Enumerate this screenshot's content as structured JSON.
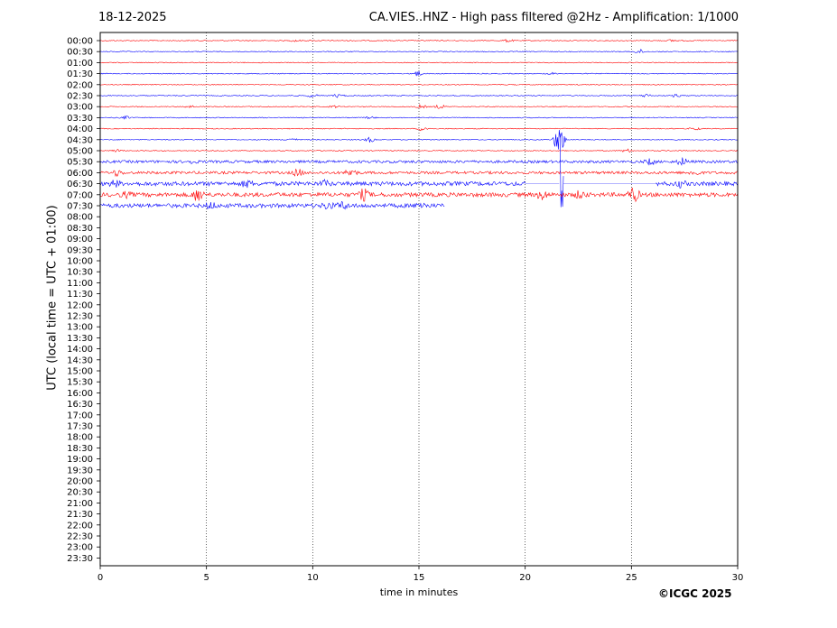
{
  "header": {
    "date": "18-12-2025",
    "title": "CA.VIES..HNZ - High pass filtered @2Hz - Amplification: 1/1000"
  },
  "copyright": "©ICGC 2025",
  "colors": {
    "odd": "#0000ff",
    "even": "#ff0000",
    "grid": "#000000"
  },
  "chart_data": {
    "type": "line",
    "title": "CA.VIES..HNZ - High pass filtered @2Hz - Amplification: 1/1000",
    "xlabel": "time in minutes",
    "ylabel": "UTC (local time = UTC + 01:00)",
    "xlim": [
      0,
      30
    ],
    "xticks": [
      0,
      5,
      10,
      15,
      20,
      25,
      30
    ],
    "grid_x": true,
    "rows": [
      "00:00",
      "00:30",
      "01:00",
      "01:30",
      "02:00",
      "02:30",
      "03:00",
      "03:30",
      "04:00",
      "04:30",
      "05:00",
      "05:30",
      "06:00",
      "06:30",
      "07:00",
      "07:30",
      "08:00",
      "08:30",
      "09:00",
      "09:30",
      "10:00",
      "10:30",
      "11:00",
      "11:30",
      "12:00",
      "12:30",
      "13:00",
      "13:30",
      "14:00",
      "14:30",
      "15:00",
      "15:30",
      "16:00",
      "16:30",
      "17:00",
      "17:30",
      "18:00",
      "18:30",
      "19:00",
      "19:30",
      "20:00",
      "20:30",
      "21:00",
      "21:30",
      "22:00",
      "22:30",
      "23:00",
      "23:30"
    ],
    "recorded_rows": 16,
    "last_row_end_minute": 16.2,
    "gaps": [
      {
        "row": 13,
        "from": 20,
        "to": 21.6
      },
      {
        "row": 13,
        "from": 21.8,
        "to": 26.1
      }
    ],
    "events": [
      {
        "row": 0,
        "minute": 9.2,
        "amp": 0.3
      },
      {
        "row": 0,
        "minute": 19.2,
        "amp": 0.4
      },
      {
        "row": 0,
        "minute": 26.9,
        "amp": 0.3
      },
      {
        "row": 1,
        "minute": 25.4,
        "amp": 0.6
      },
      {
        "row": 1,
        "minute": 28.2,
        "amp": 0.3
      },
      {
        "row": 3,
        "minute": 14.9,
        "amp": 0.8
      },
      {
        "row": 3,
        "minute": 21.2,
        "amp": 0.3
      },
      {
        "row": 5,
        "minute": 10.0,
        "amp": 0.5
      },
      {
        "row": 5,
        "minute": 11.2,
        "amp": 0.5
      },
      {
        "row": 5,
        "minute": 25.7,
        "amp": 0.5
      },
      {
        "row": 5,
        "minute": 27.1,
        "amp": 0.4
      },
      {
        "row": 6,
        "minute": 4.2,
        "amp": 0.4
      },
      {
        "row": 6,
        "minute": 11.0,
        "amp": 0.3
      },
      {
        "row": 6,
        "minute": 15.1,
        "amp": 0.5
      },
      {
        "row": 6,
        "minute": 16.0,
        "amp": 0.6
      },
      {
        "row": 7,
        "minute": 1.2,
        "amp": 0.4
      },
      {
        "row": 7,
        "minute": 12.7,
        "amp": 0.3
      },
      {
        "row": 8,
        "minute": 15.2,
        "amp": 0.7
      },
      {
        "row": 8,
        "minute": 28.0,
        "amp": 0.4
      },
      {
        "row": 9,
        "minute": 9.0,
        "amp": 0.5
      },
      {
        "row": 9,
        "minute": 12.7,
        "amp": 0.7
      },
      {
        "row": 9,
        "minute": 21.6,
        "amp": 4.5
      },
      {
        "row": 10,
        "minute": 0.8,
        "amp": 0.4
      },
      {
        "row": 10,
        "minute": 24.8,
        "amp": 0.5
      },
      {
        "row": 11,
        "minute": 4.3,
        "amp": 0.4
      },
      {
        "row": 11,
        "minute": 25.9,
        "amp": 0.8
      },
      {
        "row": 11,
        "minute": 27.4,
        "amp": 1.0
      },
      {
        "row": 12,
        "minute": 0.8,
        "amp": 0.8
      },
      {
        "row": 12,
        "minute": 9.3,
        "amp": 1.0
      },
      {
        "row": 12,
        "minute": 11.8,
        "amp": 1.2
      },
      {
        "row": 12,
        "minute": 28.0,
        "amp": 0.7
      },
      {
        "row": 13,
        "minute": 0.7,
        "amp": 0.8
      },
      {
        "row": 13,
        "minute": 6.9,
        "amp": 0.8
      },
      {
        "row": 13,
        "minute": 10.6,
        "amp": 0.7
      },
      {
        "row": 13,
        "minute": 21.6,
        "amp": 15.0
      },
      {
        "row": 13,
        "minute": 27.3,
        "amp": 0.8
      },
      {
        "row": 14,
        "minute": 1.2,
        "amp": 0.6
      },
      {
        "row": 14,
        "minute": 4.6,
        "amp": 1.8
      },
      {
        "row": 14,
        "minute": 12.4,
        "amp": 1.5
      },
      {
        "row": 14,
        "minute": 20.8,
        "amp": 1.2
      },
      {
        "row": 14,
        "minute": 22.6,
        "amp": 1.0
      },
      {
        "row": 14,
        "minute": 25.1,
        "amp": 2.0
      },
      {
        "row": 15,
        "minute": 5.2,
        "amp": 0.8
      },
      {
        "row": 15,
        "minute": 10.7,
        "amp": 0.9
      },
      {
        "row": 15,
        "minute": 11.4,
        "amp": 0.9
      },
      {
        "row": 15,
        "minute": 15.1,
        "amp": 0.8
      }
    ]
  }
}
